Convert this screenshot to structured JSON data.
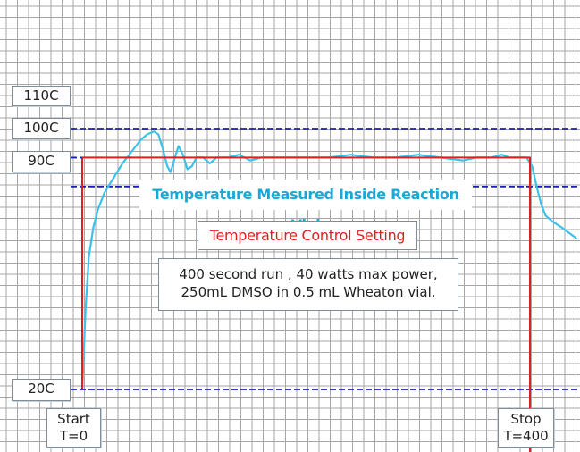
{
  "chart_data": {
    "type": "line",
    "grid": true,
    "y_ticks": [
      "110C",
      "100C",
      "90C",
      "20C"
    ],
    "y_tick_values": [
      110,
      100,
      90,
      20
    ],
    "x_markers": [
      {
        "label_line1": "Start",
        "label_line2": "T=0",
        "x": 0
      },
      {
        "label_line1": "Stop",
        "label_line2": "T=400",
        "x": 400
      }
    ],
    "xlim": [
      -25,
      442
    ],
    "ylim": [
      -3,
      124
    ],
    "series": [
      {
        "name": "Temperature Measured Inside Reaction Vial",
        "color": "#3cc2ea",
        "points": [
          [
            0,
            20
          ],
          [
            3,
            48
          ],
          [
            6,
            66
          ],
          [
            10,
            76
          ],
          [
            14,
            82
          ],
          [
            20,
            88
          ],
          [
            28,
            93
          ],
          [
            36,
            98
          ],
          [
            44,
            102
          ],
          [
            52,
            106
          ],
          [
            58,
            108
          ],
          [
            64,
            109
          ],
          [
            68,
            108
          ],
          [
            72,
            103
          ],
          [
            76,
            97
          ],
          [
            79,
            95
          ],
          [
            82,
            99
          ],
          [
            86,
            104
          ],
          [
            90,
            101
          ],
          [
            94,
            96
          ],
          [
            98,
            97
          ],
          [
            102,
            100
          ],
          [
            108,
            100
          ],
          [
            114,
            98
          ],
          [
            120,
            100
          ],
          [
            130,
            100
          ],
          [
            140,
            101
          ],
          [
            150,
            99
          ],
          [
            160,
            100
          ],
          [
            180,
            100
          ],
          [
            200,
            100
          ],
          [
            220,
            100
          ],
          [
            240,
            101
          ],
          [
            260,
            100
          ],
          [
            280,
            100
          ],
          [
            300,
            101
          ],
          [
            320,
            100
          ],
          [
            340,
            99
          ],
          [
            352,
            100
          ],
          [
            365,
            100
          ],
          [
            375,
            101
          ],
          [
            382,
            100
          ],
          [
            390,
            100
          ],
          [
            397,
            100
          ],
          [
            402,
            97
          ],
          [
            406,
            90
          ],
          [
            410,
            84
          ],
          [
            414,
            80
          ],
          [
            420,
            78
          ],
          [
            428,
            76
          ],
          [
            435,
            74
          ],
          [
            442,
            72
          ]
        ]
      },
      {
        "name": "Temperature Control Setting",
        "color": "#e02020",
        "points": [
          [
            0,
            20
          ],
          [
            0,
            100
          ],
          [
            400,
            100
          ],
          [
            400,
            -3
          ]
        ]
      }
    ],
    "annotation": [
      "400 second run , 40 watts max power,",
      "250mL DMSO in 0.5 mL Wheaton vial."
    ]
  },
  "colors": {
    "grid": "#a6a6a6",
    "reference": "#1a1fb0",
    "background": "#ffffff"
  }
}
